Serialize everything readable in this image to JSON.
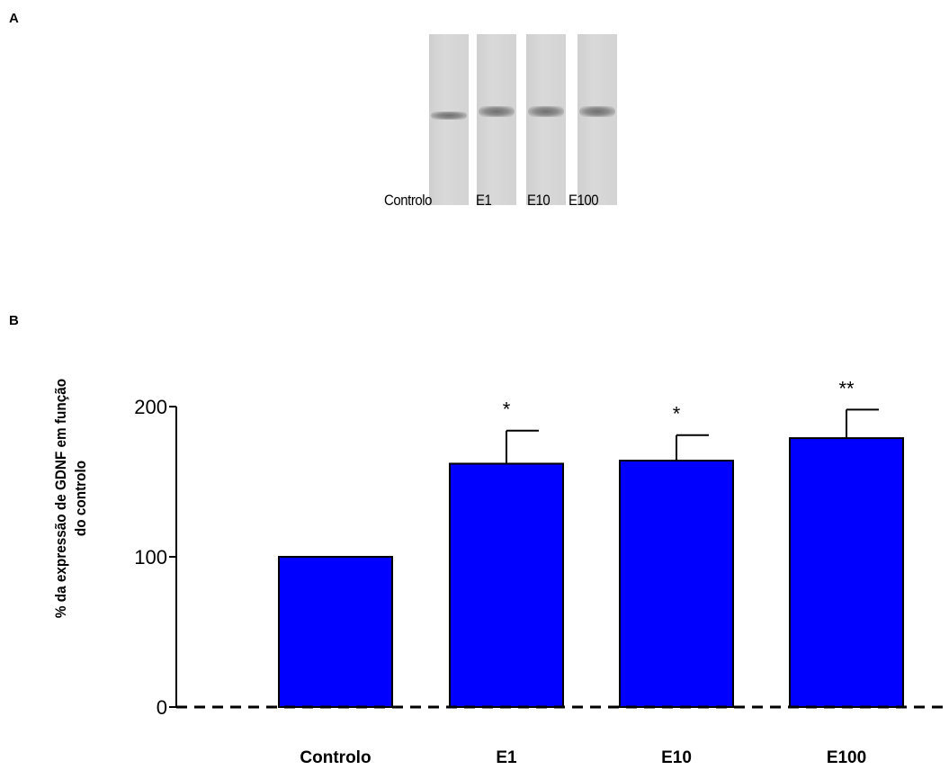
{
  "panels": {
    "a_label": "A",
    "b_label": "B"
  },
  "blot": {
    "lane_labels": [
      "Controlo",
      "E1",
      "E10",
      "E100"
    ],
    "band_intensity": [
      0.55,
      0.8,
      0.8,
      0.8
    ]
  },
  "chart_data": {
    "type": "bar",
    "categories": [
      "Controlo",
      "E1",
      "E10",
      "E100"
    ],
    "values": [
      100,
      162,
      164,
      179
    ],
    "errors": [
      0,
      22,
      17,
      19
    ],
    "significance": [
      "",
      "*",
      "*",
      "**"
    ],
    "ylabel_line1": "% da expressão de GDNF em função",
    "ylabel_line2": "do controlo",
    "yticks": [
      0,
      100,
      200
    ],
    "ylim": [
      0,
      200
    ],
    "bar_color": "#0000ff",
    "baseline": "dashed"
  }
}
